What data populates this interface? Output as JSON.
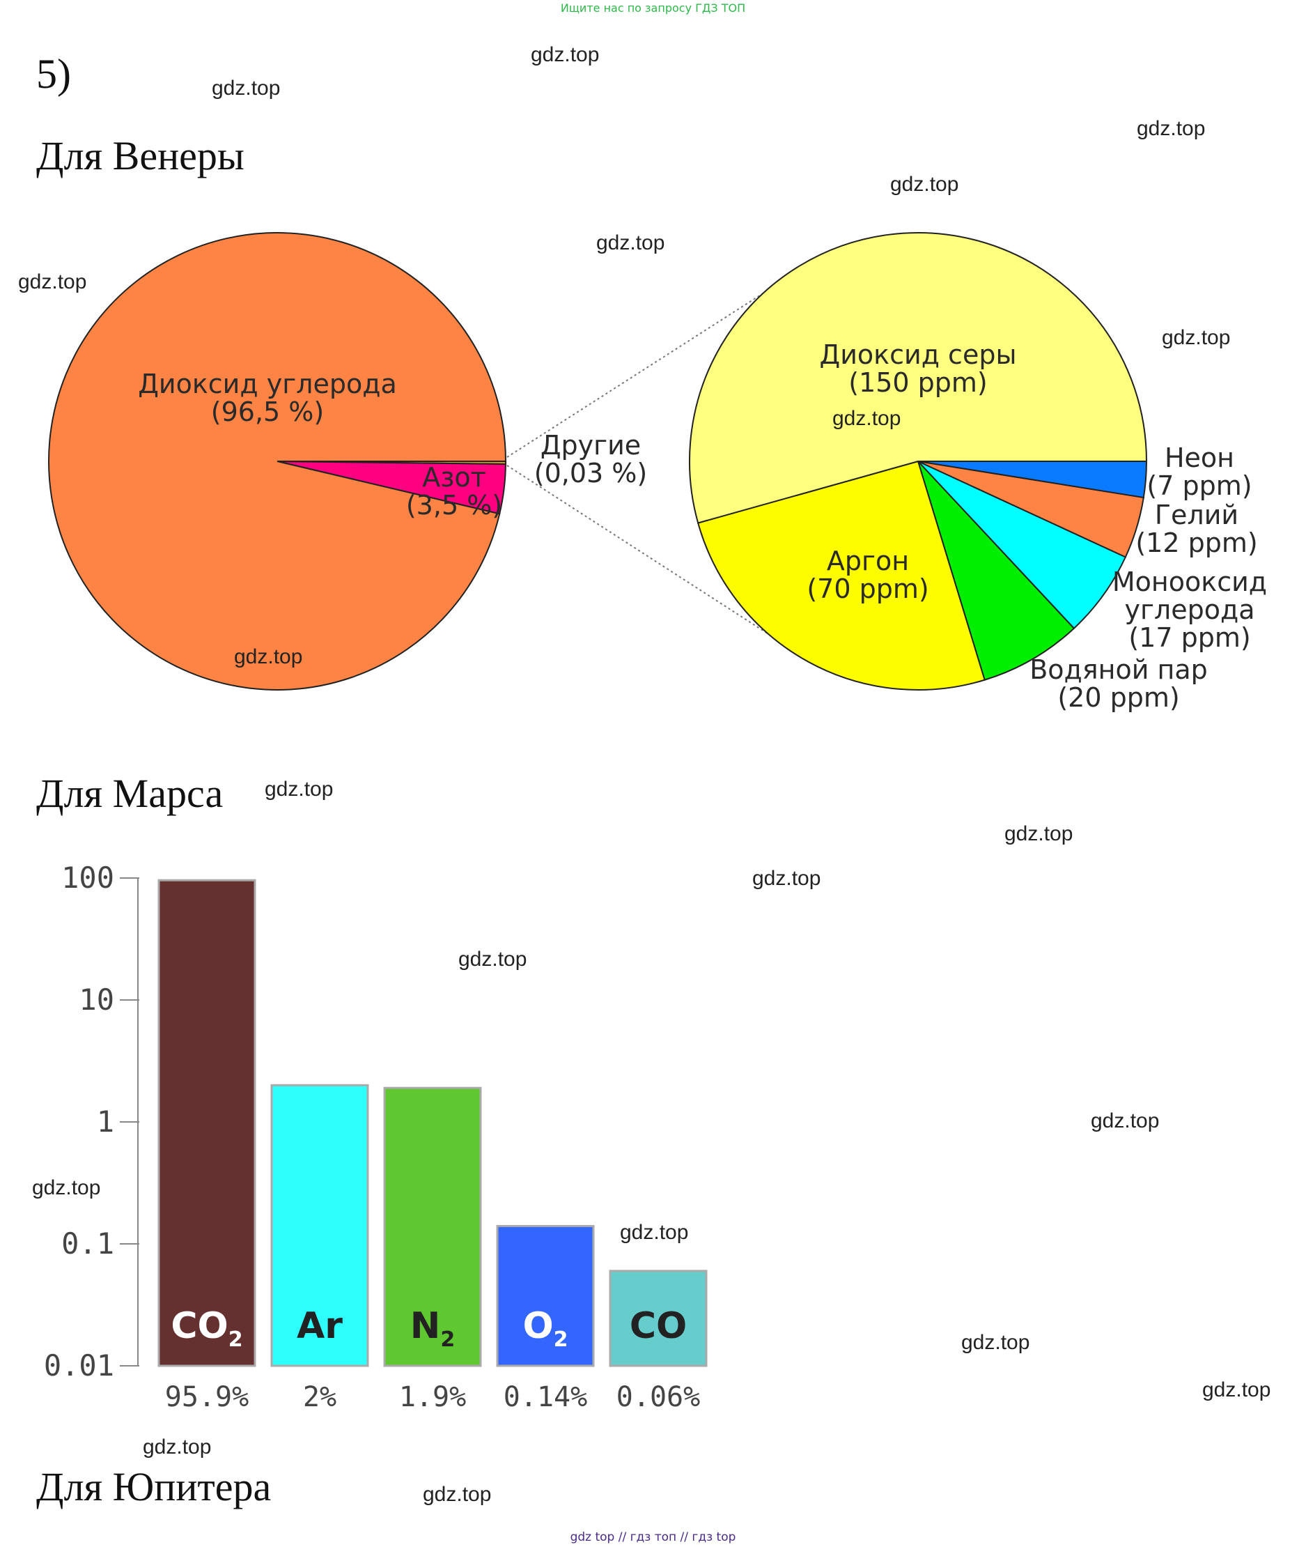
{
  "banner": "Ищите нас по запросу ГДЗ ТОП",
  "task_number": "5)",
  "sections": {
    "venus": "Для Венеры",
    "mars": "Для Марса",
    "jupiter": "Для Юпитера"
  },
  "watermark": "gdz.top",
  "footer": "gdz top  //  гдз топ  //  гдз top",
  "chart_data": [
    {
      "type": "pie",
      "title": "",
      "slices": [
        {
          "label": "Диоксид углерода",
          "value_label": "(96,5 %)",
          "value": 96.5,
          "color": "#fd8444"
        },
        {
          "label": "Азот",
          "value_label": "(3,5 %)",
          "value": 3.5,
          "color": "#fe0080"
        },
        {
          "label": "Другие",
          "value_label": "(0,03 %)",
          "value": 0.03,
          "color": "#d9a020"
        }
      ]
    },
    {
      "type": "pie",
      "title": "",
      "slices": [
        {
          "label": "Неон",
          "value_label": "(7 ppm)",
          "value": 7,
          "color": "#0a7bfe"
        },
        {
          "label": "Гелий",
          "value_label": "(12 ppm)",
          "value": 12,
          "color": "#fd8444"
        },
        {
          "label": "Монооксид углерода",
          "value_label": "(17 ppm)",
          "value": 17,
          "color": "#00fffe"
        },
        {
          "label": "Водяной пар",
          "value_label": "(20 ppm)",
          "value": 20,
          "color": "#00ee00"
        },
        {
          "label": "Аргон",
          "value_label": "(70 ppm)",
          "value": 70,
          "color": "#fdfd00"
        },
        {
          "label": "Диоксид серы",
          "value_label": "(150 ppm)",
          "value": 150,
          "color": "#ffff80"
        }
      ]
    },
    {
      "type": "bar",
      "yscale": "log",
      "ylim": [
        0.01,
        100
      ],
      "yticks": [
        100,
        10,
        1,
        0.1,
        0.01
      ],
      "ytick_labels": [
        "100",
        "10",
        "1",
        "0.1",
        "0.01"
      ],
      "categories": [
        "CO2",
        "Ar",
        "N2",
        "O2",
        "CO"
      ],
      "values": [
        95.9,
        2,
        1.9,
        0.14,
        0.06
      ],
      "value_labels": [
        "95.9%",
        "2%",
        "1.9%",
        "0.14%",
        "0.06%"
      ],
      "colors": [
        "#653030",
        "#2efffd",
        "#5fc830",
        "#3366ff",
        "#66cccc"
      ],
      "label_colors": [
        "#ffffff",
        "#222222",
        "#222222",
        "#ffffff",
        "#222222"
      ]
    }
  ]
}
